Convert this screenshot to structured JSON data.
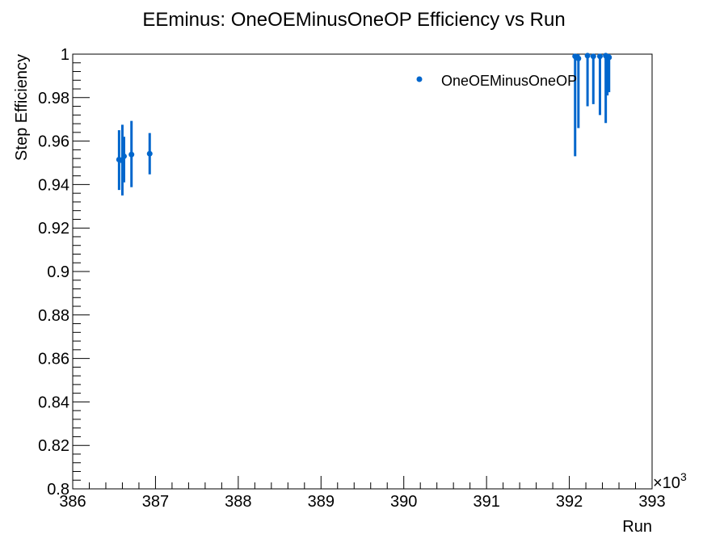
{
  "chart_data": {
    "type": "scatter",
    "title": "EEminus: OneOEMinusOneOP Efficiency vs Run",
    "xlabel": "Run",
    "ylabel": "Step Efficiency",
    "x_multiplier_label": "×10",
    "x_multiplier_exp": "3",
    "xlim": [
      386,
      393
    ],
    "ylim": [
      0.8,
      1.0
    ],
    "x_ticks": [
      "386",
      "387",
      "388",
      "389",
      "390",
      "391",
      "392",
      "393"
    ],
    "y_ticks": [
      "0.8",
      "0.82",
      "0.84",
      "0.86",
      "0.88",
      "0.9",
      "0.92",
      "0.94",
      "0.96",
      "0.98",
      "1"
    ],
    "grid": false,
    "legend_position": "top-right",
    "series": [
      {
        "name": "OneOEMinusOneOP",
        "color": "#0066cc",
        "points": [
          {
            "x": 386.56,
            "y": 0.9515,
            "err_low": 0.014,
            "err_high": 0.0135
          },
          {
            "x": 386.6,
            "y": 0.951,
            "err_low": 0.016,
            "err_high": 0.0165
          },
          {
            "x": 386.62,
            "y": 0.953,
            "err_low": 0.012,
            "err_high": 0.009
          },
          {
            "x": 386.71,
            "y": 0.9538,
            "err_low": 0.015,
            "err_high": 0.0155
          },
          {
            "x": 386.93,
            "y": 0.9542,
            "err_low": 0.0095,
            "err_high": 0.0095
          },
          {
            "x": 392.07,
            "y": 0.999,
            "err_low": 0.046,
            "err_high": 0.001
          },
          {
            "x": 392.11,
            "y": 0.998,
            "err_low": 0.032,
            "err_high": 0.002
          },
          {
            "x": 392.22,
            "y": 0.9993,
            "err_low": 0.0233,
            "err_high": 0.0007
          },
          {
            "x": 392.29,
            "y": 0.999,
            "err_low": 0.022,
            "err_high": 0.001
          },
          {
            "x": 392.37,
            "y": 0.999,
            "err_low": 0.027,
            "err_high": 0.001
          },
          {
            "x": 392.44,
            "y": 0.9993,
            "err_low": 0.031,
            "err_high": 0.0007
          },
          {
            "x": 392.46,
            "y": 0.998,
            "err_low": 0.017,
            "err_high": 0.002
          },
          {
            "x": 392.48,
            "y": 0.9985,
            "err_low": 0.016,
            "err_high": 0.0015
          }
        ]
      }
    ]
  }
}
